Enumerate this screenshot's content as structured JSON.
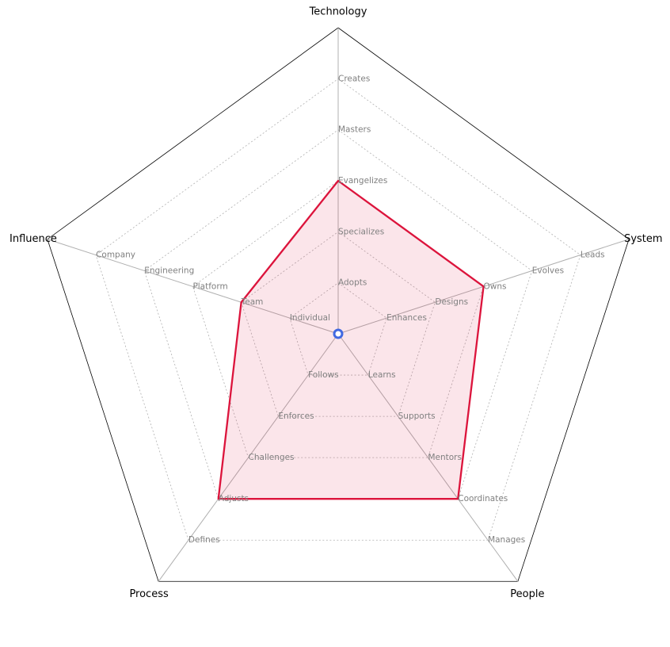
{
  "chart_data": {
    "type": "radar",
    "axes": [
      {
        "name": "Technology",
        "levels": [
          "Adopts",
          "Specializes",
          "Evangelizes",
          "Masters",
          "Creates"
        ]
      },
      {
        "name": "System",
        "levels": [
          "Enhances",
          "Designs",
          "Owns",
          "Evolves",
          "Leads"
        ]
      },
      {
        "name": "People",
        "levels": [
          "Learns",
          "Supports",
          "Mentors",
          "Coordinates",
          "Manages"
        ]
      },
      {
        "name": "Process",
        "levels": [
          "Follows",
          "Enforces",
          "Challenges",
          "Adjusts",
          "Defines"
        ]
      },
      {
        "name": "Influence",
        "levels": [
          "Individual",
          "Team",
          "Platform",
          "Engineering",
          "Company"
        ]
      }
    ],
    "series": [
      {
        "values": [
          3,
          3,
          4,
          4,
          2
        ]
      }
    ],
    "range": [
      0,
      6
    ],
    "grid": "dotted",
    "colors": {
      "line": "#dc143c",
      "fill": "#dc143c",
      "center": "#4169e1"
    }
  }
}
